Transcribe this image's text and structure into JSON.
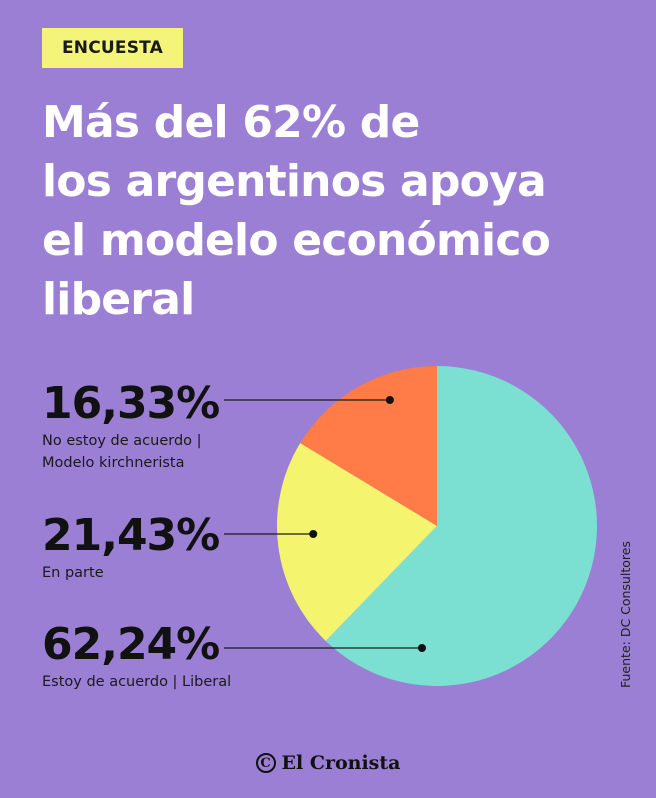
{
  "badge": "ENCUESTA",
  "title_lines": [
    "Más del 62% de",
    "los argentinos apoya",
    "el modelo económico",
    "liberal"
  ],
  "chart_data": {
    "type": "pie",
    "slices": [
      {
        "value": 16.33,
        "pct_label": "16,33%",
        "label_lines": [
          "No estoy de acuerdo |",
          "Modelo kirchnerista"
        ],
        "color": "#ff7b47"
      },
      {
        "value": 21.43,
        "pct_label": "21,43%",
        "label_lines": [
          "En parte"
        ],
        "color": "#f4f46e"
      },
      {
        "value": 62.24,
        "pct_label": "62,24%",
        "label_lines": [
          "Estoy de acuerdo | Liberal"
        ],
        "color": "#7bdfd2"
      }
    ]
  },
  "source": "Fuente: DC Consultores",
  "brand": {
    "icon": "copyright-c-icon",
    "glyph": "C",
    "name": "El Cronista"
  }
}
